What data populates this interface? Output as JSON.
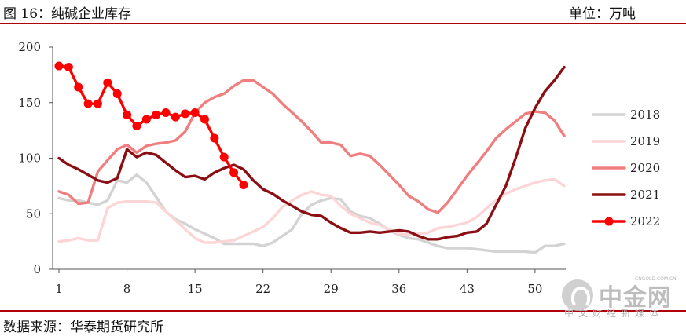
{
  "header": {
    "title": "图 16：纯碱企业库存",
    "unit": "单位：万吨"
  },
  "footer": {
    "source": "数据来源：华泰期货研究所"
  },
  "watermark": {
    "brand": "中金网",
    "domain": "CNGOLD.COM.CN",
    "tagline": "中文财经新媒体"
  },
  "chart_data": {
    "type": "line",
    "title": "纯碱企业库存",
    "xlabel": "",
    "ylabel": "",
    "ylim": [
      0,
      200
    ],
    "xlim": [
      1,
      53
    ],
    "x_ticks": [
      1,
      8,
      15,
      22,
      29,
      36,
      43,
      50
    ],
    "y_ticks": [
      0,
      50,
      100,
      150,
      200
    ],
    "grid": false,
    "legend_position": "right",
    "series": [
      {
        "name": "2018",
        "color": "#d3d3d3",
        "markers": false,
        "values": [
          64,
          62,
          62,
          60,
          58,
          62,
          80,
          78,
          85,
          78,
          65,
          52,
          45,
          41,
          36,
          32,
          28,
          23,
          23,
          23,
          23,
          21,
          24,
          30,
          36,
          50,
          58,
          62,
          64,
          63,
          52,
          48,
          46,
          41,
          35,
          31,
          28,
          27,
          24,
          21,
          19,
          19,
          19,
          18,
          17,
          16,
          16,
          16,
          16,
          15,
          21,
          21,
          23
        ]
      },
      {
        "name": "2019",
        "color": "#fcd6d6",
        "markers": false,
        "values": [
          25,
          26,
          28,
          26,
          26,
          55,
          60,
          61,
          61,
          61,
          60,
          52,
          44,
          36,
          28,
          24,
          24,
          25,
          26,
          30,
          34,
          38,
          46,
          56,
          62,
          67,
          70,
          67,
          66,
          57,
          50,
          46,
          42,
          40,
          36,
          32,
          31,
          32,
          33,
          37,
          38,
          40,
          42,
          47,
          55,
          62,
          68,
          72,
          75,
          78,
          80,
          81,
          75
        ]
      },
      {
        "name": "2020",
        "color": "#f07e7e",
        "markers": false,
        "values": [
          70,
          67,
          59,
          60,
          88,
          98,
          108,
          112,
          105,
          111,
          113,
          114,
          116,
          124,
          141,
          150,
          155,
          158,
          165,
          170,
          170,
          164,
          158,
          149,
          141,
          133,
          124,
          114,
          114,
          112,
          102,
          104,
          102,
          94,
          85,
          76,
          66,
          61,
          54,
          51,
          60,
          72,
          84,
          95,
          106,
          118,
          126,
          133,
          140,
          142,
          141,
          134,
          120
        ]
      },
      {
        "name": "2021",
        "color": "#8b0e13",
        "markers": false,
        "values": [
          100,
          94,
          90,
          85,
          80,
          78,
          82,
          108,
          101,
          105,
          103,
          96,
          89,
          83,
          84,
          81,
          87,
          91,
          94,
          90,
          80,
          72,
          68,
          62,
          57,
          52,
          49,
          48,
          42,
          37,
          33,
          33,
          34,
          33,
          34,
          35,
          34,
          30,
          27,
          27,
          29,
          30,
          33,
          34,
          41,
          58,
          75,
          100,
          127,
          145,
          160,
          170,
          182
        ]
      },
      {
        "name": "2022",
        "color": "#ff0000",
        "markers": true,
        "values": [
          183,
          182,
          164,
          149,
          149,
          168,
          158,
          139,
          129,
          135,
          139,
          141,
          137,
          140,
          141,
          135,
          118,
          101,
          87,
          76
        ]
      }
    ]
  }
}
